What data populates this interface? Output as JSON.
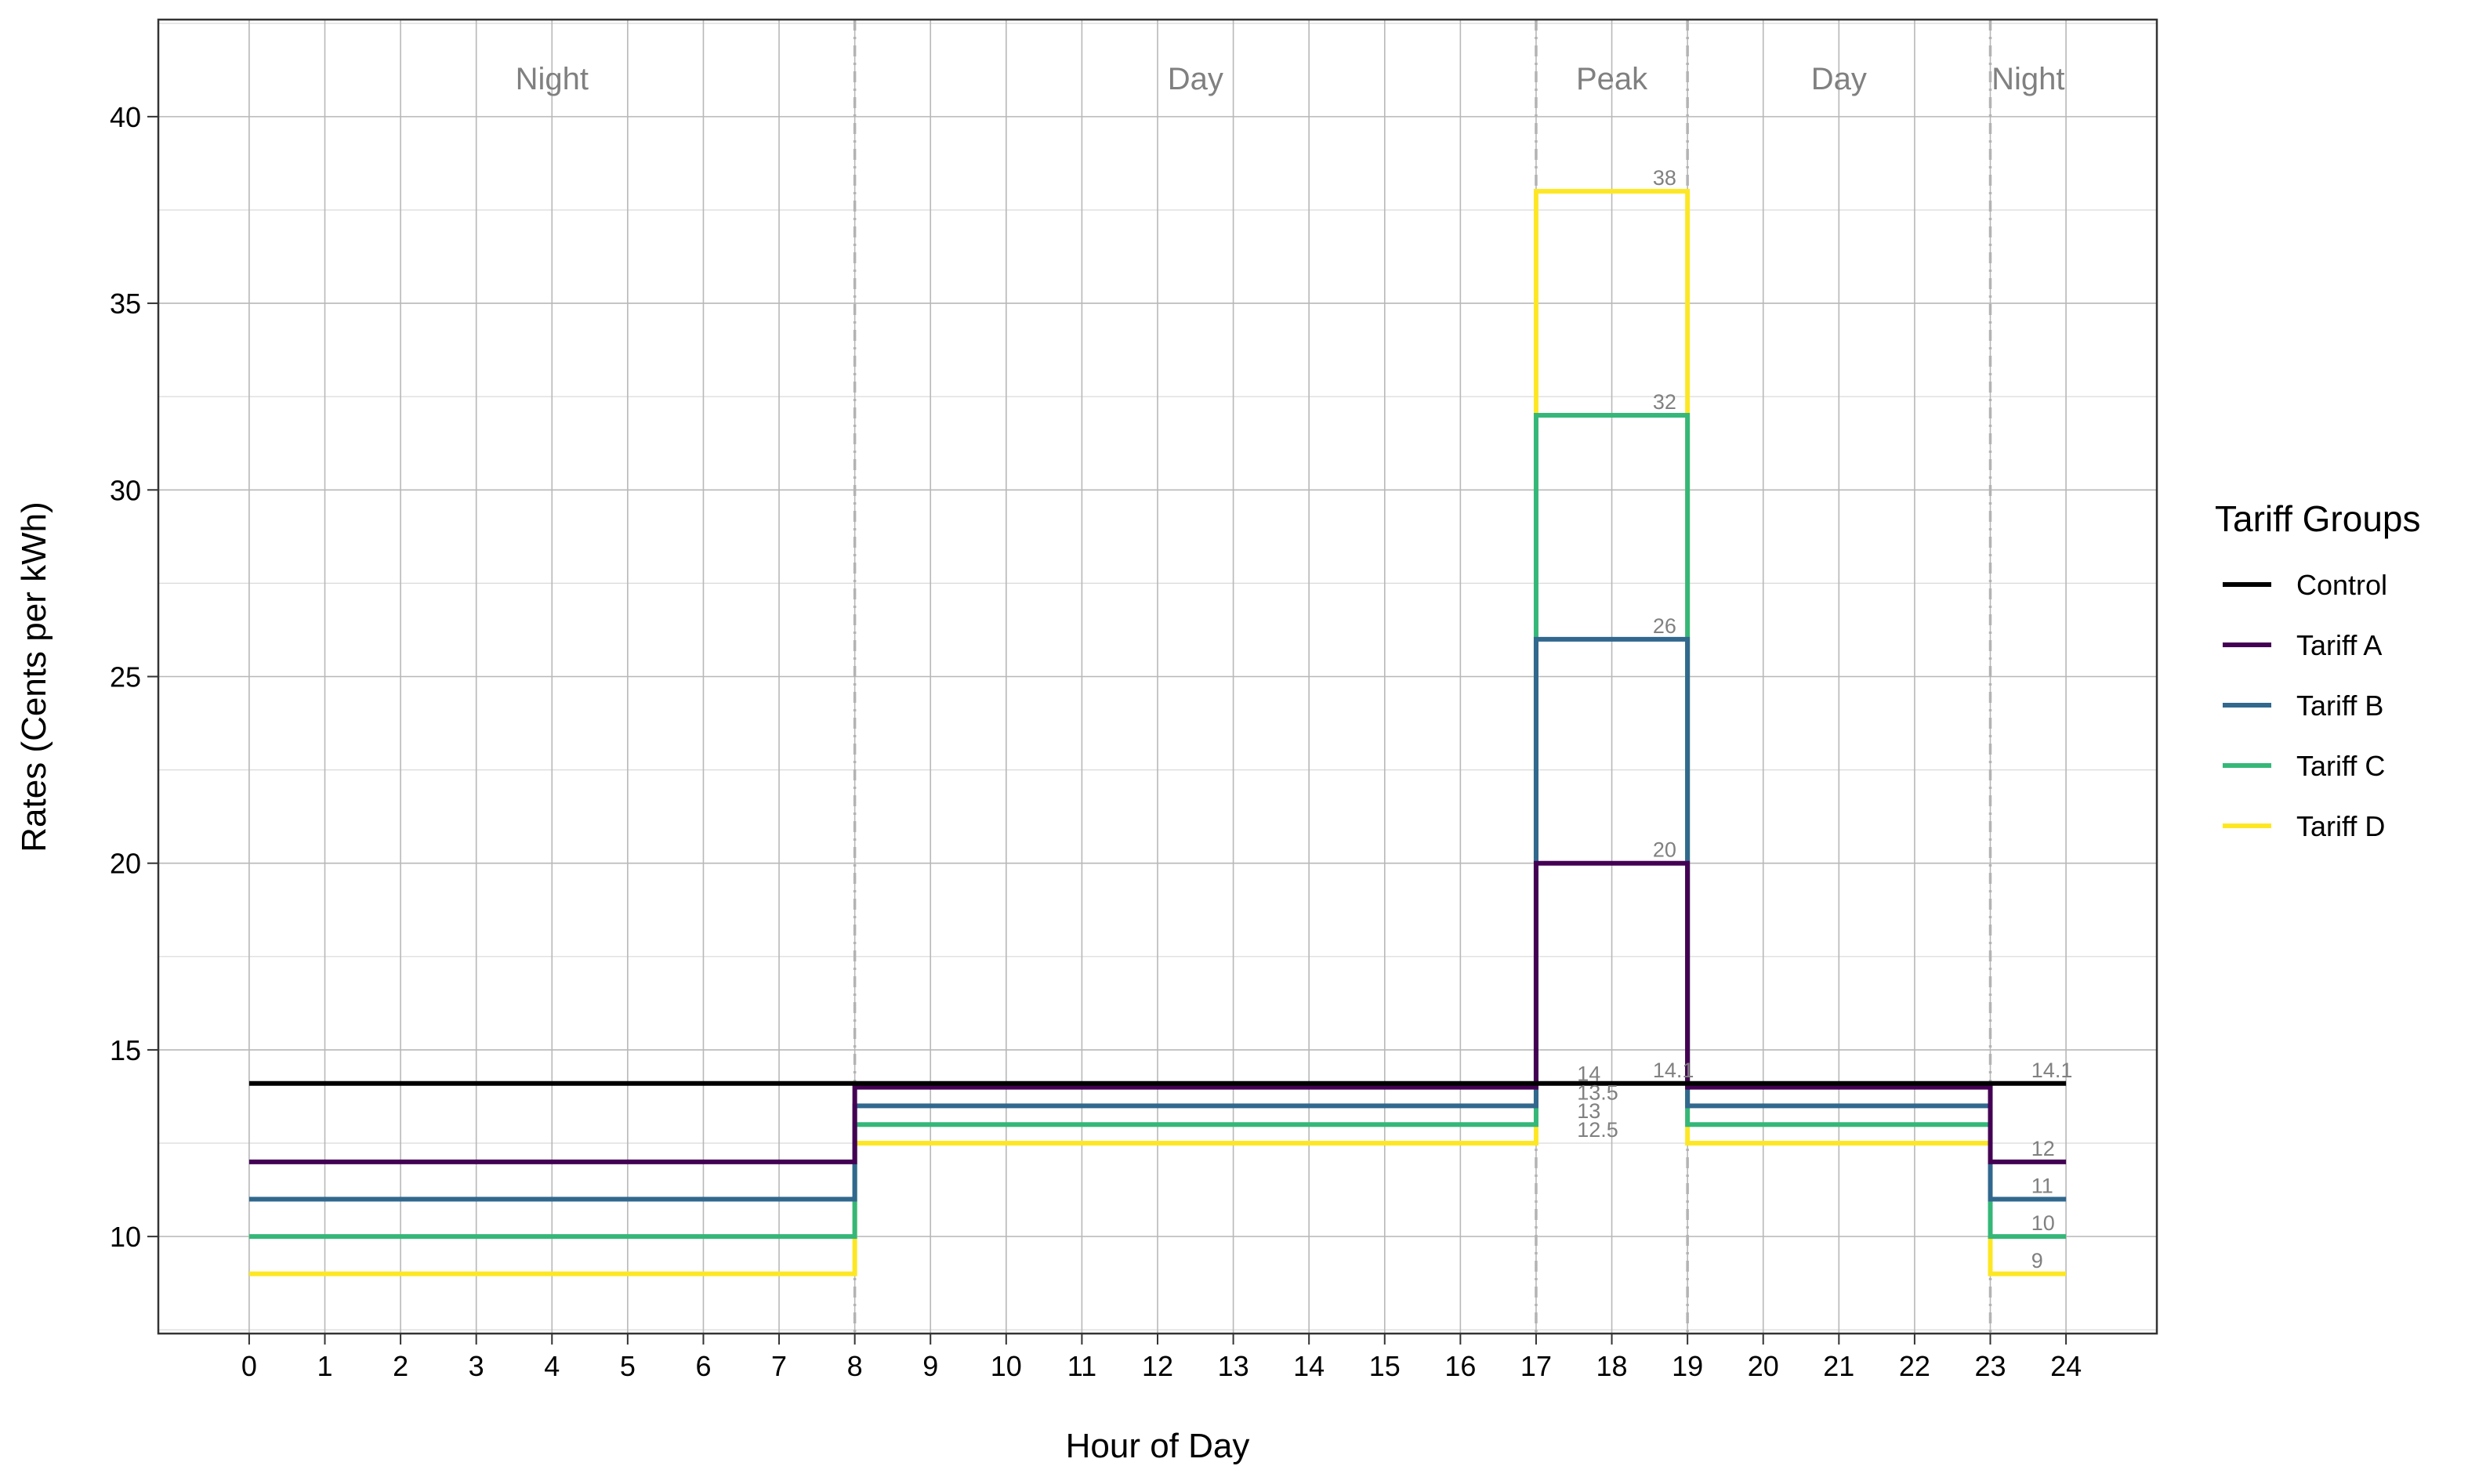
{
  "chart_data": {
    "type": "line",
    "title": "",
    "xlabel": "Hour of Day",
    "ylabel": "Rates  (Cents per kWh)",
    "xlim": [
      -1.2,
      25.2
    ],
    "ylim": [
      7.4,
      42.6
    ],
    "x_ticks": [
      0,
      1,
      2,
      3,
      4,
      5,
      6,
      7,
      8,
      9,
      10,
      11,
      12,
      13,
      14,
      15,
      16,
      17,
      18,
      19,
      20,
      21,
      22,
      23,
      24
    ],
    "y_ticks": [
      10,
      15,
      20,
      25,
      30,
      35,
      40
    ],
    "grid": true,
    "legend": {
      "title": "Tariff Groups",
      "position": "right"
    },
    "period_boundaries": [
      8,
      17,
      19,
      23
    ],
    "periods": [
      {
        "label": "Night",
        "start": 0,
        "end": 8
      },
      {
        "label": "Day",
        "start": 8,
        "end": 17
      },
      {
        "label": "Peak",
        "start": 17,
        "end": 19
      },
      {
        "label": "Day",
        "start": 19,
        "end": 23
      },
      {
        "label": "Night",
        "start": 23,
        "end": 24
      }
    ],
    "series": [
      {
        "name": "Control",
        "color": "#000000",
        "steps": [
          [
            0,
            24,
            14.1
          ]
        ]
      },
      {
        "name": "Tariff A",
        "color": "#440154",
        "steps": [
          [
            0,
            8,
            12
          ],
          [
            8,
            17,
            14
          ],
          [
            17,
            19,
            20
          ],
          [
            19,
            23,
            14
          ],
          [
            23,
            24,
            12
          ]
        ]
      },
      {
        "name": "Tariff B",
        "color": "#31688E",
        "steps": [
          [
            0,
            8,
            11
          ],
          [
            8,
            17,
            13.5
          ],
          [
            17,
            19,
            26
          ],
          [
            19,
            23,
            13.5
          ],
          [
            23,
            24,
            11
          ]
        ]
      },
      {
        "name": "Tariff C",
        "color": "#35B779",
        "steps": [
          [
            0,
            8,
            10
          ],
          [
            8,
            17,
            13
          ],
          [
            17,
            19,
            32
          ],
          [
            19,
            23,
            13
          ],
          [
            23,
            24,
            10
          ]
        ]
      },
      {
        "name": "Tariff D",
        "color": "#FDE725",
        "steps": [
          [
            0,
            8,
            9
          ],
          [
            8,
            17,
            12.5
          ],
          [
            17,
            19,
            38
          ],
          [
            19,
            23,
            12.5
          ],
          [
            23,
            24,
            9
          ]
        ]
      }
    ],
    "rate_labels": [
      {
        "x": 18.5,
        "y": 38,
        "text": "38"
      },
      {
        "x": 18.5,
        "y": 32,
        "text": "32"
      },
      {
        "x": 18.5,
        "y": 26,
        "text": "26"
      },
      {
        "x": 18.5,
        "y": 20,
        "text": "20"
      },
      {
        "x": 18.5,
        "y": 14.1,
        "text": "14.1"
      },
      {
        "x": 17.5,
        "y": 14,
        "text": "14"
      },
      {
        "x": 17.5,
        "y": 13.5,
        "text": "13.5"
      },
      {
        "x": 17.5,
        "y": 13,
        "text": "13"
      },
      {
        "x": 17.5,
        "y": 12.5,
        "text": "12.5"
      },
      {
        "x": 23.5,
        "y": 14.1,
        "text": "14.1"
      },
      {
        "x": 23.5,
        "y": 12,
        "text": "12"
      },
      {
        "x": 23.5,
        "y": 11,
        "text": "11"
      },
      {
        "x": 23.5,
        "y": 10,
        "text": "10"
      },
      {
        "x": 23.5,
        "y": 9,
        "text": "9"
      }
    ]
  }
}
